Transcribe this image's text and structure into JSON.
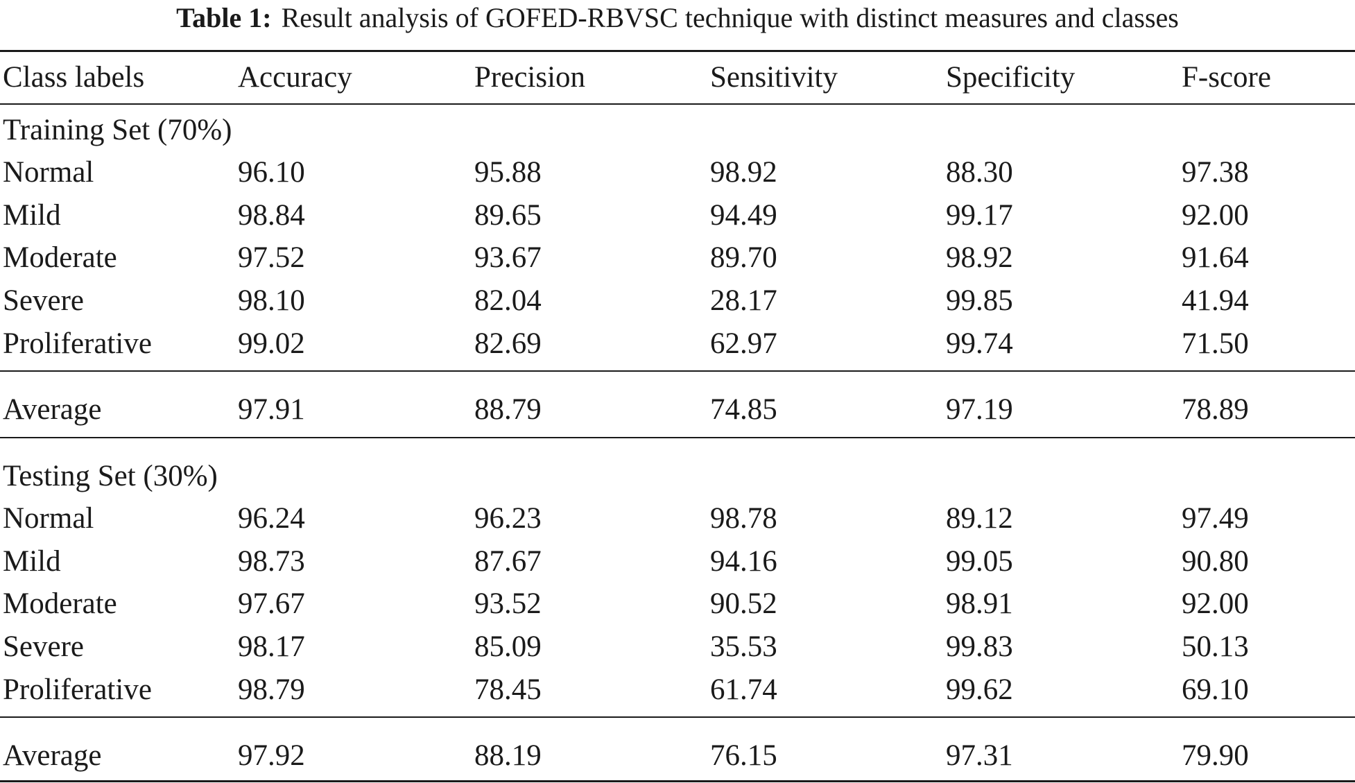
{
  "caption": {
    "label": "Table 1:",
    "text": "Result analysis of GOFED-RBVSC technique with distinct measures and classes"
  },
  "table": {
    "headers": [
      "Class labels",
      "Accuracy",
      "Precision",
      "Sensitivity",
      "Specificity",
      "F-score"
    ],
    "sections": [
      {
        "title": "Training Set (70%)",
        "rows": [
          [
            "Normal",
            "96.10",
            "95.88",
            "98.92",
            "88.30",
            "97.38"
          ],
          [
            "Mild",
            "98.84",
            "89.65",
            "94.49",
            "99.17",
            "92.00"
          ],
          [
            "Moderate",
            "97.52",
            "93.67",
            "89.70",
            "98.92",
            "91.64"
          ],
          [
            "Severe",
            "98.10",
            "82.04",
            "28.17",
            "99.85",
            "41.94"
          ],
          [
            "Proliferative",
            "99.02",
            "82.69",
            "62.97",
            "99.74",
            "71.50"
          ]
        ],
        "average": [
          "Average",
          "97.91",
          "88.79",
          "74.85",
          "97.19",
          "78.89"
        ]
      },
      {
        "title": "Testing Set (30%)",
        "rows": [
          [
            "Normal",
            "96.24",
            "96.23",
            "98.78",
            "89.12",
            "97.49"
          ],
          [
            "Mild",
            "98.73",
            "87.67",
            "94.16",
            "99.05",
            "90.80"
          ],
          [
            "Moderate",
            "97.67",
            "93.52",
            "90.52",
            "98.91",
            "92.00"
          ],
          [
            "Severe",
            "98.17",
            "85.09",
            "35.53",
            "99.83",
            "50.13"
          ],
          [
            "Proliferative",
            "98.79",
            "78.45",
            "61.74",
            "99.62",
            "69.10"
          ]
        ],
        "average": [
          "Average",
          "97.92",
          "88.19",
          "76.15",
          "97.31",
          "79.90"
        ]
      }
    ]
  }
}
